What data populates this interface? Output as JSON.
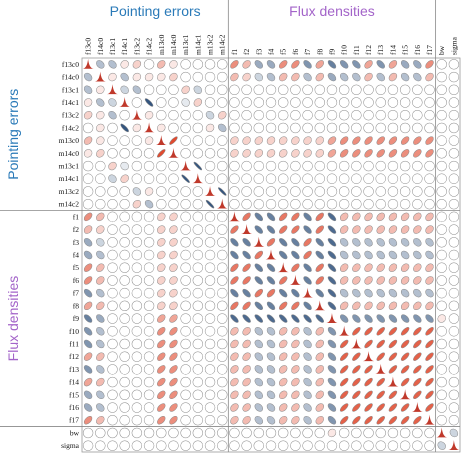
{
  "chart_data": {
    "type": "corrplot",
    "groups": [
      {
        "name": "Pointing errors",
        "color": "#2a7ab8",
        "variables": [
          "f13c0",
          "f14c0",
          "f13c1",
          "f14c1",
          "f13c2",
          "f14c2",
          "m13c0",
          "m14c0",
          "m13c1",
          "m14c1",
          "m13c2",
          "m14c2"
        ]
      },
      {
        "name": "Flux densities",
        "color": "#a364c9",
        "variables": [
          "f1",
          "f2",
          "f3",
          "f4",
          "f5",
          "f6",
          "f7",
          "f8",
          "f9",
          "f10",
          "f11",
          "f12",
          "f13",
          "f14",
          "f15",
          "f16",
          "f17"
        ]
      },
      {
        "variables": [
          "bw",
          "sigma"
        ]
      }
    ],
    "positive_color": "#e04a2f",
    "negative_color": "#34557f",
    "diagonal_color": "#c0392b",
    "matrix": [
      [],
      [
        -0.3
      ],
      [
        -0.3,
        0.1
      ],
      [
        0.1,
        -0.3,
        -0.2
      ],
      [
        0.2,
        0.1,
        -0.3,
        0
      ],
      [
        0,
        0.1,
        0,
        -0.8,
        0.1
      ],
      [
        0.3,
        0.1,
        0,
        0,
        0,
        0.1
      ],
      [
        0.1,
        0.2,
        0,
        0,
        0,
        0,
        0.8
      ],
      [
        0,
        0,
        0.2,
        -0.1,
        0,
        0,
        0,
        0
      ],
      [
        0,
        0,
        -0.2,
        0.2,
        0,
        0,
        0,
        0,
        -0.9
      ],
      [
        0,
        0,
        0,
        0,
        -0.2,
        0.1,
        0,
        0,
        0,
        0
      ],
      [
        0,
        0,
        0,
        0,
        0.2,
        -0.3,
        0,
        0,
        0,
        0,
        -0.9
      ],
      [
        0.5,
        0.3,
        0,
        0,
        0,
        0,
        0.2,
        0.2,
        0,
        0,
        0,
        0
      ],
      [
        0.3,
        0.2,
        0,
        0,
        0,
        0,
        0.2,
        0.2,
        0,
        0,
        0,
        0,
        0.6
      ],
      [
        -0.4,
        -0.2,
        0,
        0,
        0,
        0,
        0.2,
        0.2,
        0,
        0,
        0,
        0,
        -0.6,
        -0.6
      ],
      [
        -0.4,
        -0.3,
        0,
        0,
        0,
        0,
        0.2,
        0.2,
        0,
        0,
        0,
        0,
        -0.6,
        -0.6,
        0.6
      ],
      [
        0.5,
        0.3,
        0,
        0,
        0,
        0,
        0.2,
        0.2,
        0,
        0,
        0,
        0,
        0.6,
        0.6,
        -0.6,
        -0.6
      ],
      [
        0.5,
        0.3,
        0,
        0,
        0,
        0,
        0.2,
        0.2,
        0,
        0,
        0,
        0,
        0.6,
        0.6,
        -0.6,
        -0.6,
        0.6
      ],
      [
        -0.5,
        -0.3,
        0,
        0,
        0,
        0,
        0.2,
        0.2,
        0,
        0,
        0,
        0,
        -0.6,
        -0.6,
        0.6,
        0.6,
        -0.6,
        -0.6
      ],
      [
        0.4,
        0.3,
        0,
        0,
        0,
        0,
        0.2,
        0.2,
        0,
        0,
        0,
        0,
        0.6,
        0.6,
        -0.6,
        -0.6,
        0.6,
        0.6,
        -0.6
      ],
      [
        -0.6,
        -0.4,
        0,
        0,
        0,
        0,
        0.4,
        0.4,
        0,
        0,
        0,
        0,
        -0.7,
        -0.7,
        -0.7,
        -0.7,
        -0.7,
        -0.7,
        -0.7,
        -0.7
      ],
      [
        -0.5,
        -0.3,
        0,
        0,
        0,
        0,
        0.5,
        0.5,
        0,
        0,
        0,
        0,
        0.3,
        0.3,
        -0.3,
        -0.3,
        0.3,
        0.3,
        -0.3,
        0.3,
        -0.5
      ],
      [
        -0.5,
        -0.3,
        0,
        0,
        0,
        0,
        0.5,
        0.5,
        0,
        0,
        0,
        0,
        0.3,
        0.3,
        -0.3,
        -0.3,
        0.3,
        0.3,
        -0.3,
        0.3,
        -0.5,
        0.7
      ],
      [
        0.4,
        0.3,
        0,
        0,
        0,
        0,
        0.5,
        0.5,
        0,
        0,
        0,
        0,
        0.3,
        0.3,
        -0.3,
        -0.3,
        0.3,
        0.3,
        -0.3,
        0.3,
        -0.5,
        0.7,
        0.7
      ],
      [
        -0.5,
        -0.3,
        0,
        0,
        0,
        0,
        0.5,
        0.5,
        0,
        0,
        0,
        0,
        0.3,
        0.3,
        -0.3,
        -0.3,
        0.3,
        0.3,
        -0.3,
        0.3,
        -0.5,
        0.7,
        0.7,
        0.7
      ],
      [
        0.4,
        0.3,
        0,
        0,
        0,
        0,
        0.5,
        0.5,
        0,
        0,
        0,
        0,
        0.3,
        0.3,
        -0.3,
        -0.3,
        0.3,
        0.3,
        -0.3,
        0.3,
        -0.5,
        0.7,
        0.7,
        0.7,
        0.7
      ],
      [
        -0.4,
        -0.3,
        0,
        0,
        0,
        0,
        0.5,
        0.5,
        0,
        0,
        0,
        0,
        0.3,
        0.3,
        -0.3,
        -0.3,
        0.3,
        0.3,
        -0.3,
        0.3,
        -0.5,
        0.7,
        0.7,
        0.7,
        0.7,
        0.7
      ],
      [
        -0.4,
        -0.3,
        0,
        0,
        0,
        0,
        0.5,
        0.5,
        0,
        0,
        0,
        0,
        0.3,
        0.3,
        -0.3,
        -0.3,
        0.3,
        0.3,
        -0.3,
        0.3,
        -0.5,
        0.7,
        0.7,
        0.7,
        0.7,
        0.7,
        0.7
      ],
      [
        0.5,
        0.3,
        0,
        0,
        0,
        0,
        0.5,
        0.5,
        0,
        0,
        0,
        0,
        0.3,
        0.3,
        -0.3,
        -0.3,
        0.3,
        0.3,
        -0.3,
        0.3,
        -0.5,
        0.7,
        0.7,
        0.7,
        0.7,
        0.7,
        0.7,
        0.7
      ],
      [
        0,
        0,
        0,
        0,
        0,
        0,
        0,
        0,
        0,
        0,
        0,
        0,
        0,
        0,
        0,
        0,
        0,
        0,
        0,
        0,
        0.1,
        0,
        0,
        0,
        0,
        0,
        0,
        0,
        0
      ],
      [
        0,
        0,
        0,
        0,
        0,
        0,
        0,
        0,
        0,
        0,
        0,
        0,
        0,
        0,
        0,
        0,
        0,
        0,
        0,
        0,
        0,
        0,
        0,
        0,
        0,
        0,
        0,
        0,
        0,
        -0.2
      ]
    ]
  }
}
